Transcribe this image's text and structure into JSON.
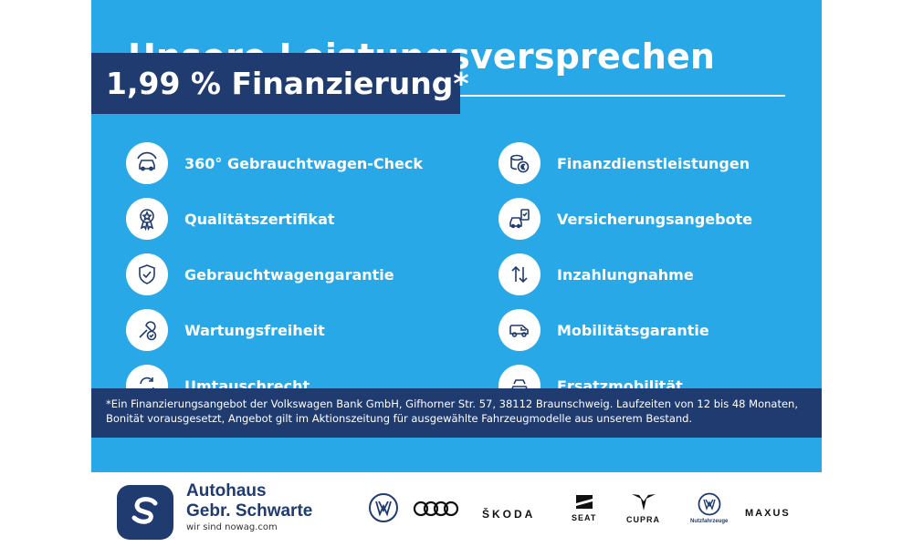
{
  "heading": "Unsere Leistungsversprechen",
  "badge": "1,99 % Finanzierung*",
  "features_left": [
    {
      "label": "360° Gebrauchtwagen-Check",
      "icon": "car-check-icon"
    },
    {
      "label": "Qualitätszertifikat",
      "icon": "award-icon"
    },
    {
      "label": "Gebrauchtwagengarantie",
      "icon": "shield-check-icon"
    },
    {
      "label": "Wartungsfreiheit",
      "icon": "wrench-check-icon"
    },
    {
      "label": "Umtauschrecht",
      "icon": "exchange-icon"
    }
  ],
  "features_right": [
    {
      "label": "Finanzdienstleistungen",
      "icon": "coins-euro-icon"
    },
    {
      "label": "Versicherungsangebote",
      "icon": "car-document-icon"
    },
    {
      "label": "Inzahlungnahme",
      "icon": "arrows-up-down-icon"
    },
    {
      "label": "Mobilitätsgarantie",
      "icon": "van-icon"
    },
    {
      "label": "Ersatzmobilität",
      "icon": "cars-icon"
    }
  ],
  "disclaimer": "*Ein Finanzierungsangebot der Volkswagen Bank GmbH, Gifhorner Str. 57, 38112 Braunschweig. Laufzeiten von 12 bis 48 Monaten, Bonität vorausgesetzt, Angebot gilt im Aktionszeitung für ausgewählte Fahrzeugmodelle aus unserem Bestand.",
  "footer": {
    "dealer_line1": "Autohaus",
    "dealer_line2": "Gebr. Schwarte",
    "dealer_tagline": "wir sind nowag.com",
    "brands": [
      {
        "name": "vw-logo",
        "text": ""
      },
      {
        "name": "audi-logo",
        "text": ""
      },
      {
        "name": "skoda-logo",
        "text": "ŠKODA"
      },
      {
        "name": "seat-logo",
        "text": "SEAT"
      },
      {
        "name": "cupra-logo",
        "text": "CUPRA"
      },
      {
        "name": "vw-nutzfahrzeuge-logo",
        "text": "Nutzfahrzeuge"
      },
      {
        "name": "maxus-logo",
        "text": "MAXUS"
      }
    ]
  },
  "colors": {
    "panel": "#29a8e8",
    "navy": "#1f3b70",
    "white": "#ffffff"
  }
}
